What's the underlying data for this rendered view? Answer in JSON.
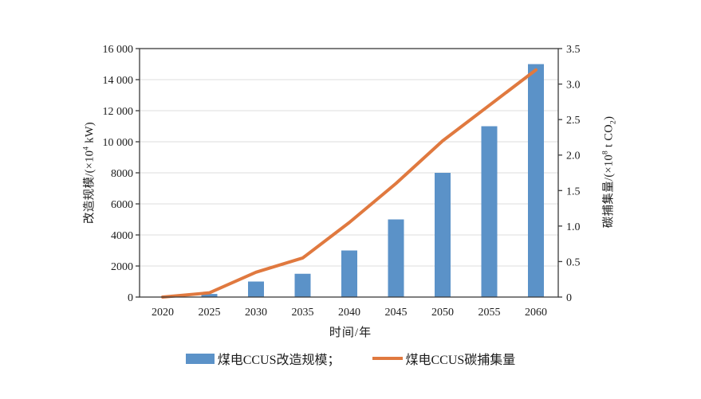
{
  "figure": {
    "x_axis_title": "时间/年",
    "left_axis_title": {
      "prefix": "改造规模/(×10",
      "sup": "4",
      "suffix": " kW)"
    },
    "right_axis_title": {
      "prefix": "碳捕集量/(×10",
      "sup": "8",
      "mid": " t CO",
      "sub": "2",
      "suffix": ")"
    },
    "legend": [
      {
        "label": "煤电CCUS改造规模；",
        "color": "#5b92c8",
        "type": "bar"
      },
      {
        "label": "煤电CCUS碳捕集量",
        "color": "#e0793f",
        "type": "line"
      }
    ],
    "colors": {
      "bar": "#5b92c8",
      "line": "#e0793f",
      "axis": "#3a3a3a",
      "gridline": "#dcdcdc",
      "text": "#1c1c1c"
    }
  },
  "chart_data": {
    "type": "bar",
    "subtype": "bar+line dual axis",
    "categories": [
      "2020",
      "2025",
      "2030",
      "2035",
      "2040",
      "2045",
      "2050",
      "2055",
      "2060"
    ],
    "series": [
      {
        "name": "煤电CCUS改造规模",
        "type": "bar",
        "axis": "left",
        "color": "#5b92c8",
        "values": [
          0,
          200,
          1000,
          1500,
          3000,
          5000,
          8000,
          11000,
          15000
        ]
      },
      {
        "name": "煤电CCUS碳捕集量",
        "type": "line",
        "axis": "right",
        "color": "#e0793f",
        "values": [
          0,
          0.06,
          0.35,
          0.55,
          1.05,
          1.6,
          2.2,
          2.7,
          3.2
        ]
      }
    ],
    "left_axis": {
      "label": "改造规模/(×10⁴ kW)",
      "range": [
        0,
        16000
      ],
      "tick_step": 2000,
      "tick_labels": [
        "0",
        "2000",
        "4000",
        "6000",
        "8000",
        "10 000",
        "12 000",
        "14 000",
        "16 000"
      ]
    },
    "right_axis": {
      "label": "碳捕集量/(×10⁸ t CO₂)",
      "range": [
        0,
        3.5
      ],
      "tick_step": 0.5,
      "tick_labels": [
        "0",
        "0.5",
        "1.0",
        "1.5",
        "2.0",
        "2.5",
        "3.0",
        "3.5"
      ]
    },
    "xlabel": "时间/年",
    "grid": true,
    "legend_position": "bottom"
  }
}
